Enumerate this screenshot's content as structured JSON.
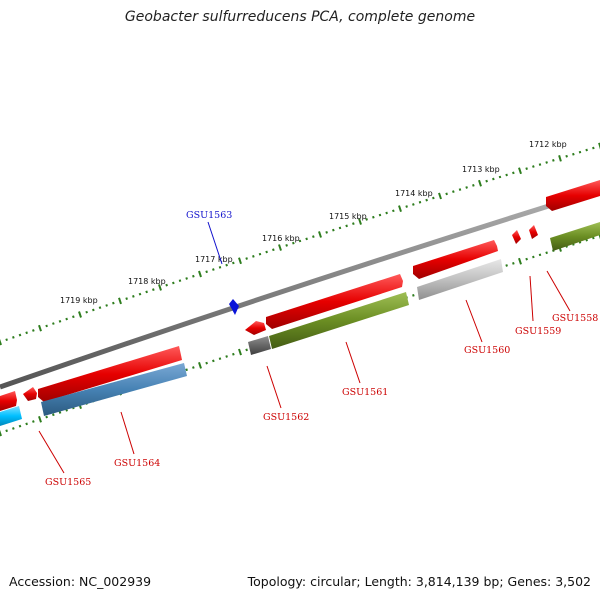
{
  "title": "Geobacter sulfurreducens PCA, complete genome",
  "footer": {
    "accession": "Accession: NC_002939",
    "summary": "Topology: circular; Length: 3,814,139 bp; Genes: 3,502"
  },
  "colors": {
    "backbone": "#7a7a7a",
    "ticks": "#2e7d1e",
    "forward_gene": "#ee0000",
    "label_red": "#cc0000",
    "label_blue": "#1111cc"
  },
  "ruler": {
    "labels": [
      "1712 kbp",
      "1713 kbp",
      "1714 kbp",
      "1715 kbp",
      "1716 kbp",
      "1717 kbp",
      "1718 kbp",
      "1719 kbp"
    ]
  },
  "genes": [
    {
      "id": "GSU1558",
      "strand": "+",
      "color": "#ee0000",
      "label_color": "#cc0000"
    },
    {
      "id": "GSU1559",
      "strand": "+",
      "color": "#ee0000",
      "label_color": "#cc0000"
    },
    {
      "id": "GSU1560",
      "strand": "+",
      "color": "#ee0000",
      "label_color": "#cc0000"
    },
    {
      "id": "GSU1561",
      "strand": "+",
      "color": "#ee0000",
      "label_color": "#cc0000"
    },
    {
      "id": "GSU1562",
      "strand": "+",
      "color": "#ee0000",
      "label_color": "#cc0000"
    },
    {
      "id": "GSU1563",
      "strand": "+",
      "color": "#0a14d8",
      "label_color": "#1111cc"
    },
    {
      "id": "GSU1564",
      "strand": "+",
      "color": "#ee0000",
      "label_color": "#cc0000"
    },
    {
      "id": "GSU1565",
      "strand": "+",
      "color": "#ee0000",
      "label_color": "#cc0000"
    }
  ],
  "cogs": [
    {
      "for": "GSU1558",
      "color": "#6b8e23"
    },
    {
      "for": "GSU1560",
      "color": "#c0c0c0"
    },
    {
      "for": "GSU1561",
      "color": "#6b8e23"
    },
    {
      "for": "GSU1562",
      "color": "#666666"
    },
    {
      "for": "GSU1564",
      "color": "#4682b4"
    },
    {
      "for": "GSU1565",
      "color": "#00bfff"
    }
  ]
}
